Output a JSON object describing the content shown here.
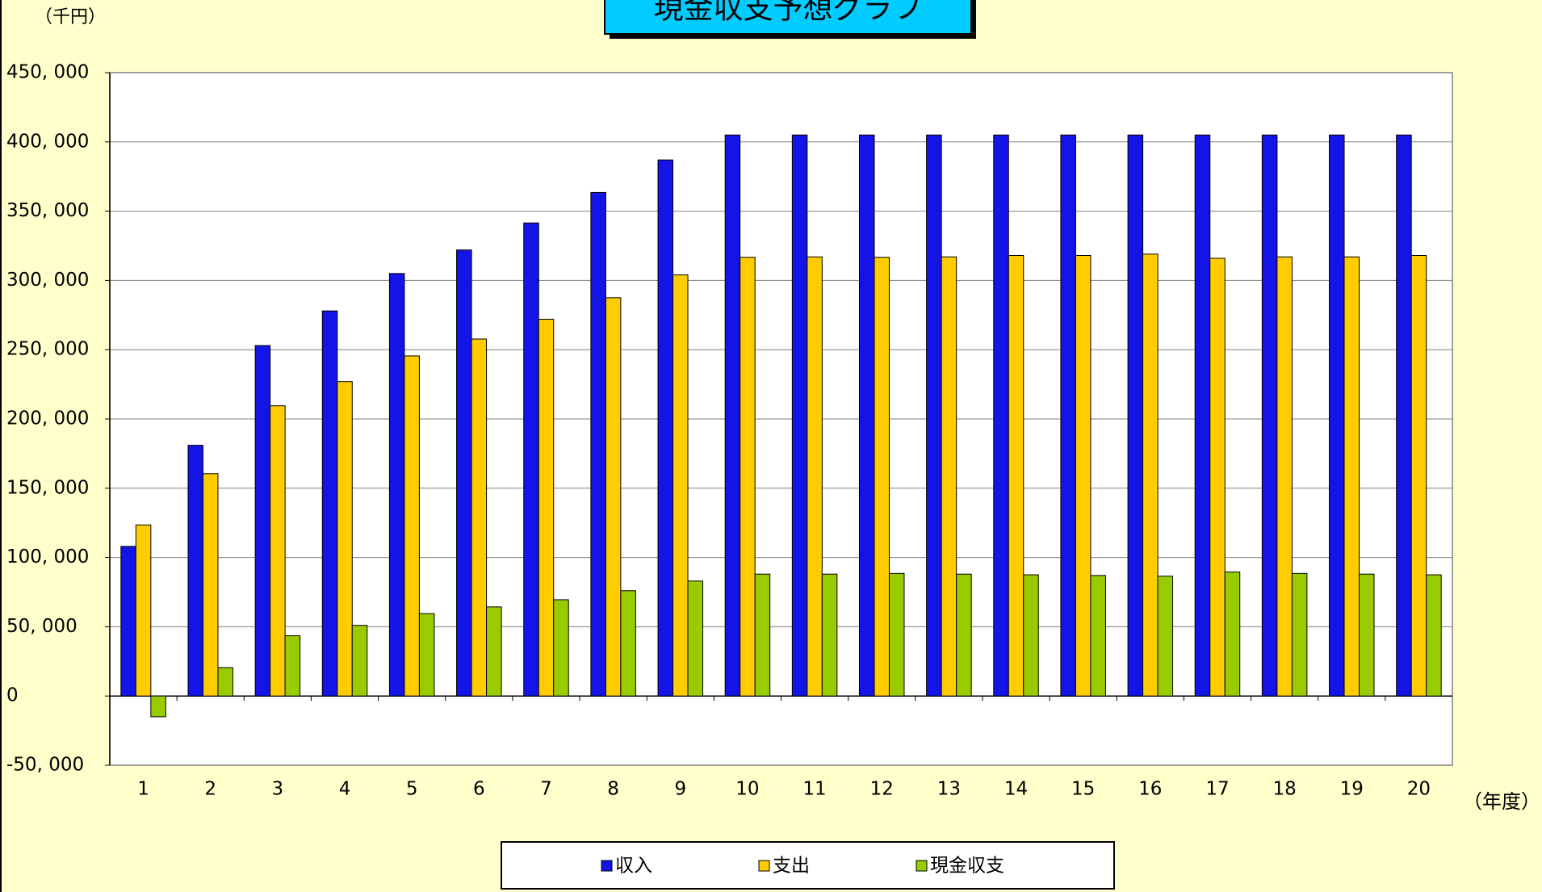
{
  "chart_data": {
    "type": "bar",
    "title": "現金収支予想グラフ",
    "y_unit_label": "（千円）",
    "x_unit_label": "（年度）",
    "categories": [
      "1",
      "2",
      "3",
      "4",
      "5",
      "6",
      "7",
      "8",
      "9",
      "10",
      "11",
      "12",
      "13",
      "14",
      "15",
      "16",
      "17",
      "18",
      "19",
      "20"
    ],
    "series": [
      {
        "name": "収入",
        "color": "#1414e6",
        "values": [
          108000,
          181000,
          253000,
          278000,
          305000,
          322000,
          341500,
          363500,
          387000,
          405000,
          405000,
          405000,
          405000,
          405000,
          405000,
          405000,
          405000,
          405000,
          405000,
          405000
        ]
      },
      {
        "name": "支出",
        "color": "#ffcc00",
        "values": [
          123500,
          160500,
          209500,
          227000,
          245500,
          257700,
          272000,
          287500,
          304000,
          316700,
          317000,
          316700,
          317000,
          318000,
          318000,
          319000,
          316000,
          317000,
          317000,
          318000
        ]
      },
      {
        "name": "現金収支",
        "color": "#99cc00",
        "values": [
          -15000,
          20500,
          43500,
          51000,
          59500,
          64300,
          69500,
          76000,
          83000,
          88000,
          88000,
          88500,
          88000,
          87500,
          87000,
          86500,
          89500,
          88500,
          88000,
          87500
        ]
      }
    ],
    "ylim": [
      -50000,
      450000
    ],
    "yticks": [
      {
        "value": -50000,
        "label": "-50, 000"
      },
      {
        "value": 0,
        "label": "0"
      },
      {
        "value": 50000,
        "label": "50, 000"
      },
      {
        "value": 100000,
        "label": "100, 000"
      },
      {
        "value": 150000,
        "label": "150, 000"
      },
      {
        "value": 200000,
        "label": "200, 000"
      },
      {
        "value": 250000,
        "label": "250, 000"
      },
      {
        "value": 300000,
        "label": "300, 000"
      },
      {
        "value": 350000,
        "label": "350, 000"
      },
      {
        "value": 400000,
        "label": "400, 000"
      },
      {
        "value": 450000,
        "label": "450, 000"
      }
    ],
    "negative_tick_color": "#ff0000",
    "grid": true
  }
}
